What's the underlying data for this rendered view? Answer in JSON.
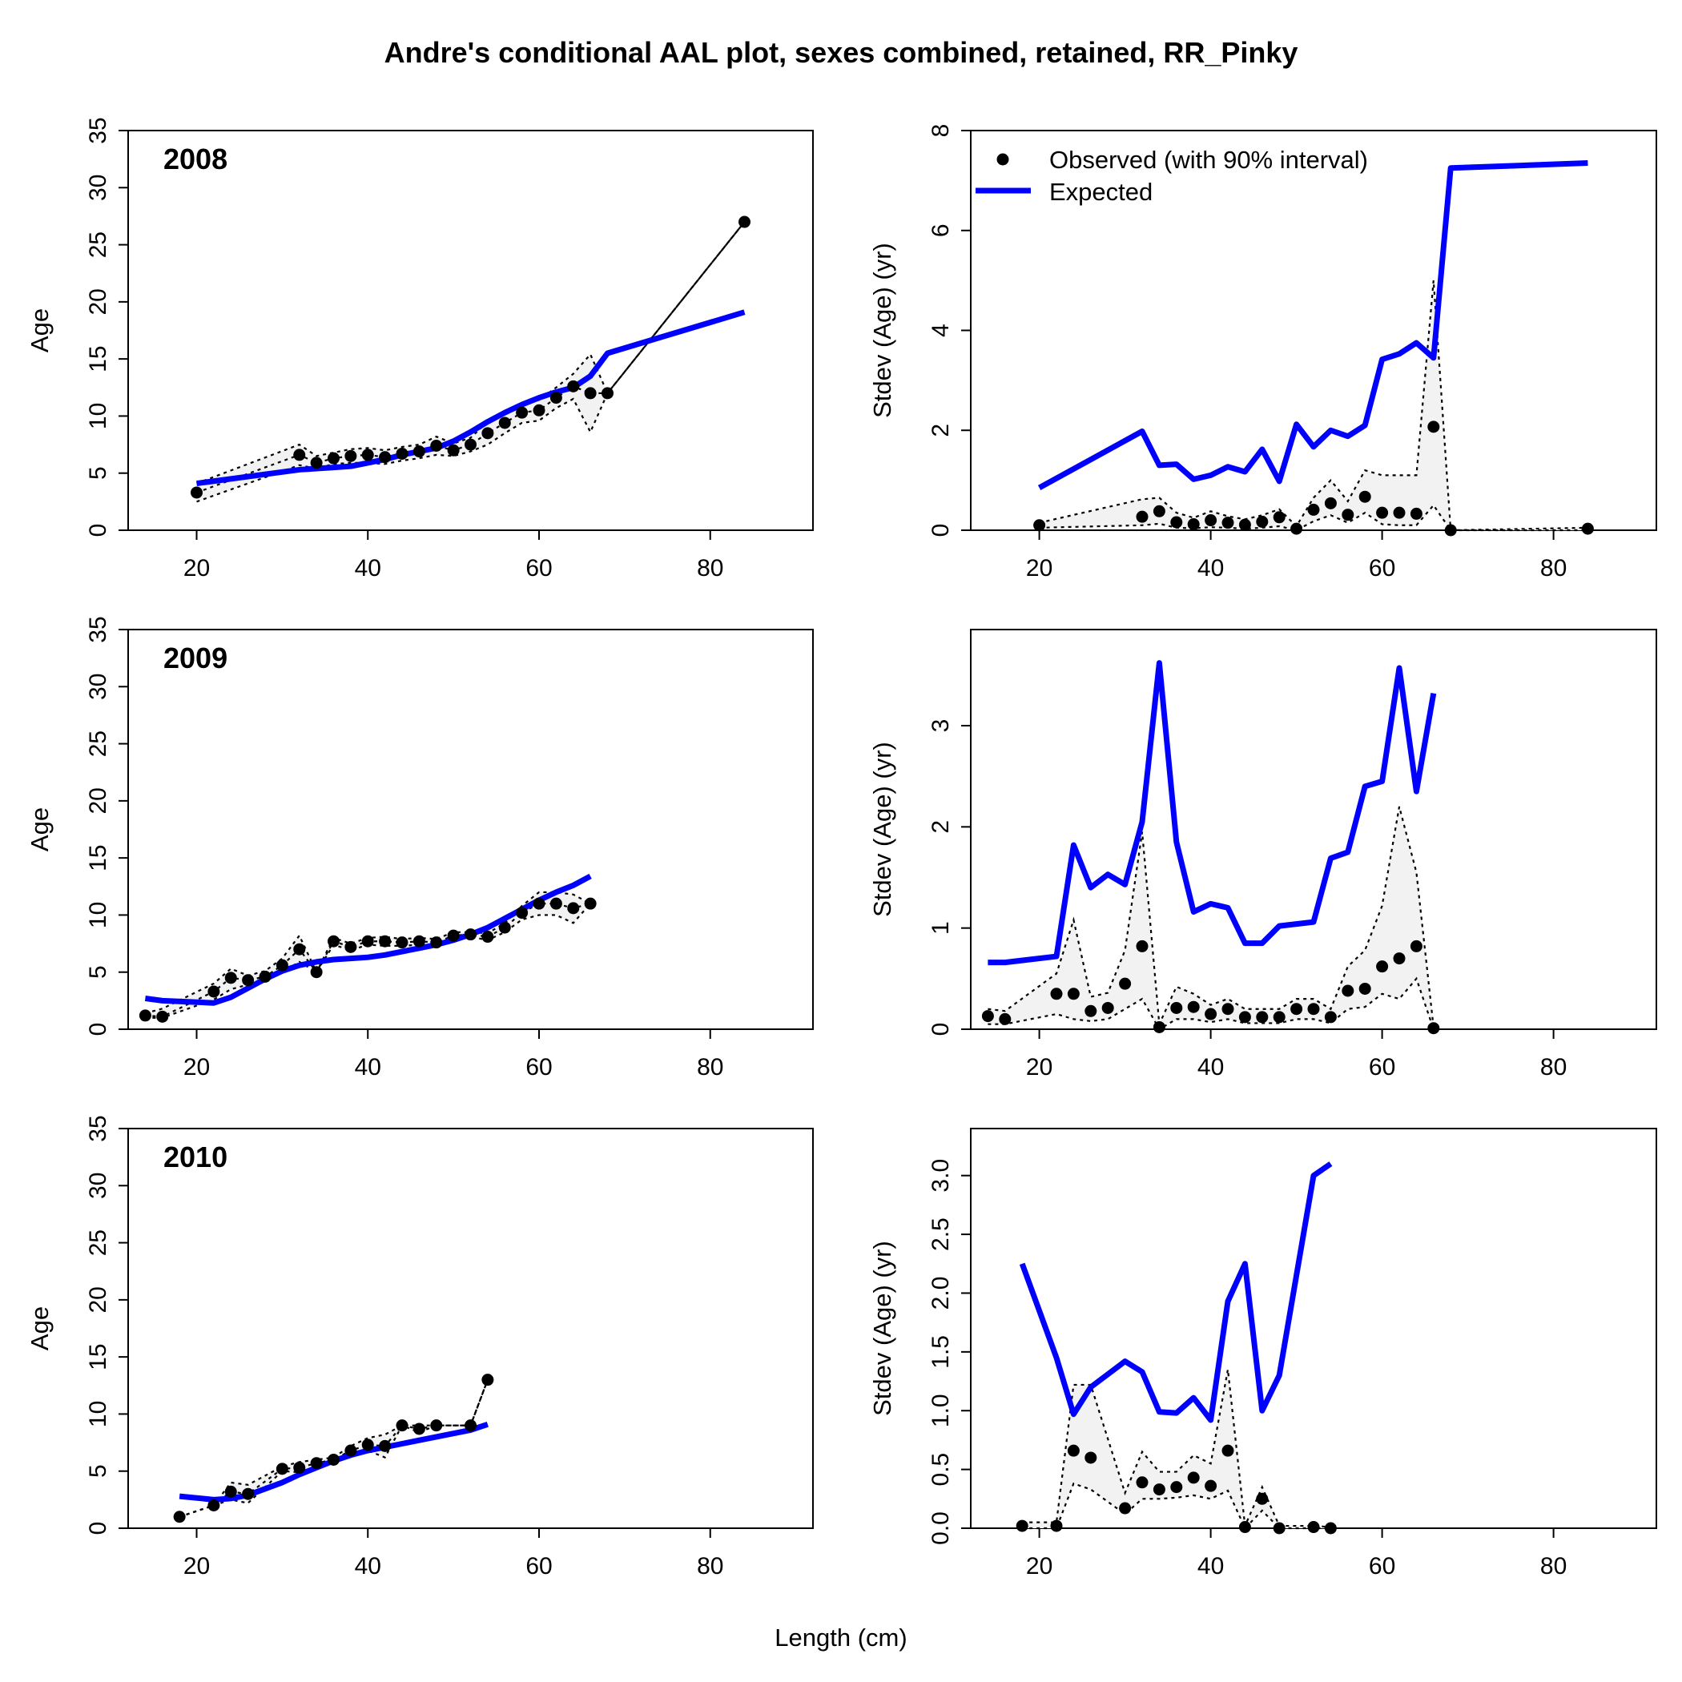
{
  "figure": {
    "title": "Andre's conditional AAL plot, sexes combined, retained, RR_Pinky",
    "xlabel": "Length (cm)",
    "ylabel_left": "Age",
    "ylabel_right": "Stdev (Age) (yr)",
    "legend": {
      "observed_label": "Observed (with 90% interval)",
      "expected_label": "Expected",
      "placement": "top-left",
      "panel": "2008 stdev"
    }
  },
  "colors": {
    "expected": "#0000ff",
    "observed": "#000000",
    "interval_fill": "#f2f2f2",
    "interval_line": "#000000"
  },
  "chart_data": [
    {
      "type": "line",
      "panel": "mean-age",
      "year": "2008",
      "xlim": [
        12,
        92
      ],
      "ylim": [
        0,
        35
      ],
      "xticks": [
        20,
        40,
        60,
        80
      ],
      "yticks": [
        0,
        5,
        10,
        15,
        20,
        25,
        30,
        35
      ],
      "observed": {
        "x": [
          20,
          32,
          34,
          36,
          38,
          40,
          42,
          44,
          46,
          48,
          50,
          52,
          54,
          56,
          58,
          60,
          62,
          64,
          66,
          68,
          84
        ],
        "y": [
          3.3,
          6.6,
          5.9,
          6.3,
          6.5,
          6.6,
          6.4,
          6.7,
          6.9,
          7.4,
          7.0,
          7.5,
          8.5,
          9.4,
          10.3,
          10.5,
          11.6,
          12.6,
          12.0,
          12.0,
          27.0
        ]
      },
      "interval": {
        "x": [
          20,
          32,
          34,
          36,
          38,
          40,
          42,
          44,
          46,
          48,
          50,
          52,
          54,
          56,
          58,
          60,
          62,
          64,
          66,
          68,
          84
        ],
        "lo": [
          2.5,
          5.7,
          5.4,
          5.8,
          5.9,
          5.9,
          5.8,
          6.1,
          6.3,
          6.6,
          6.5,
          6.9,
          7.5,
          8.5,
          9.4,
          9.6,
          10.7,
          11.5,
          8.6,
          12.0,
          27.0
        ],
        "hi": [
          4.1,
          7.5,
          6.5,
          6.8,
          7.1,
          7.2,
          7.0,
          7.3,
          7.5,
          8.2,
          7.6,
          8.1,
          9.5,
          10.3,
          11.2,
          11.4,
          12.5,
          13.7,
          15.4,
          12.0,
          27.0
        ]
      },
      "expected": {
        "x": [
          20,
          32,
          34,
          36,
          38,
          40,
          42,
          44,
          46,
          48,
          50,
          52,
          54,
          56,
          58,
          60,
          62,
          64,
          66,
          68,
          84
        ],
        "y": [
          4.1,
          5.3,
          5.4,
          5.5,
          5.6,
          5.9,
          6.2,
          6.6,
          6.9,
          7.2,
          7.8,
          8.6,
          9.5,
          10.3,
          11.0,
          11.6,
          12.1,
          12.5,
          13.5,
          15.5,
          19.1
        ]
      }
    },
    {
      "type": "line",
      "panel": "stdev-age",
      "year": "2008",
      "xlim": [
        12,
        92
      ],
      "ylim": [
        0,
        8
      ],
      "xticks": [
        20,
        40,
        60,
        80
      ],
      "yticks": [
        0,
        2,
        4,
        6,
        8
      ],
      "observed": {
        "x": [
          20,
          32,
          34,
          36,
          38,
          40,
          42,
          44,
          46,
          48,
          50,
          52,
          54,
          56,
          58,
          60,
          62,
          64,
          66,
          68,
          84
        ],
        "y": [
          0.1,
          0.27,
          0.38,
          0.16,
          0.12,
          0.2,
          0.15,
          0.11,
          0.17,
          0.26,
          0.03,
          0.41,
          0.54,
          0.31,
          0.67,
          0.35,
          0.35,
          0.33,
          2.07,
          0.0,
          0.03
        ]
      },
      "interval": {
        "x": [
          20,
          32,
          34,
          36,
          38,
          40,
          42,
          44,
          46,
          48,
          50,
          52,
          54,
          56,
          58,
          60,
          62,
          64,
          66,
          68,
          84
        ],
        "lo": [
          0.05,
          0.1,
          0.13,
          0.05,
          0.04,
          0.06,
          0.05,
          0.03,
          0.05,
          0.08,
          0.0,
          0.18,
          0.3,
          0.15,
          0.35,
          0.12,
          0.1,
          0.1,
          0.5,
          0.0,
          0.0
        ],
        "hi": [
          0.15,
          0.62,
          0.65,
          0.35,
          0.25,
          0.38,
          0.28,
          0.22,
          0.3,
          0.42,
          0.08,
          0.65,
          1.0,
          0.58,
          1.2,
          1.1,
          1.1,
          1.1,
          5.0,
          0.0,
          0.05
        ]
      },
      "expected": {
        "x": [
          20,
          32,
          34,
          36,
          38,
          40,
          42,
          44,
          46,
          48,
          50,
          52,
          54,
          56,
          58,
          60,
          62,
          64,
          66,
          68,
          84
        ],
        "y": [
          0.85,
          1.98,
          1.3,
          1.32,
          1.02,
          1.1,
          1.27,
          1.17,
          1.62,
          0.98,
          2.12,
          1.67,
          2.0,
          1.88,
          2.1,
          3.42,
          3.53,
          3.75,
          3.45,
          7.25,
          7.35
        ]
      }
    },
    {
      "type": "line",
      "panel": "mean-age",
      "year": "2009",
      "xlim": [
        12,
        92
      ],
      "ylim": [
        0,
        35
      ],
      "xticks": [
        20,
        40,
        60,
        80
      ],
      "yticks": [
        0,
        5,
        10,
        15,
        20,
        25,
        30,
        35
      ],
      "observed": {
        "x": [
          14,
          16,
          22,
          24,
          26,
          28,
          30,
          32,
          34,
          36,
          38,
          40,
          42,
          44,
          46,
          48,
          50,
          52,
          54,
          56,
          58,
          60,
          62,
          64,
          66
        ],
        "y": [
          1.2,
          1.1,
          3.3,
          4.5,
          4.3,
          4.6,
          5.6,
          7.0,
          5.0,
          7.7,
          7.2,
          7.7,
          7.7,
          7.6,
          7.7,
          7.6,
          8.2,
          8.3,
          8.1,
          8.9,
          10.2,
          11.0,
          11.0,
          10.6,
          11.0
        ]
      },
      "interval": {
        "x": [
          14,
          16,
          22,
          24,
          26,
          28,
          30,
          32,
          34,
          36,
          38,
          40,
          42,
          44,
          46,
          48,
          50,
          52,
          54,
          56,
          58,
          60,
          62,
          64,
          66
        ],
        "lo": [
          1.0,
          1.0,
          2.6,
          3.5,
          3.9,
          4.2,
          5.0,
          5.9,
          5.0,
          7.4,
          6.9,
          7.4,
          7.3,
          7.3,
          7.4,
          7.3,
          7.9,
          8.1,
          7.8,
          8.5,
          9.6,
          10.0,
          10.0,
          9.3,
          11.0
        ],
        "hi": [
          1.4,
          1.8,
          4.0,
          5.3,
          4.7,
          5.1,
          6.2,
          8.2,
          5.0,
          8.0,
          7.5,
          8.0,
          8.1,
          7.9,
          8.0,
          7.9,
          8.5,
          8.5,
          8.4,
          9.3,
          10.8,
          12.0,
          12.0,
          11.8,
          11.0
        ]
      },
      "expected": {
        "x": [
          14,
          16,
          22,
          24,
          26,
          28,
          30,
          32,
          34,
          36,
          38,
          40,
          42,
          44,
          46,
          48,
          50,
          52,
          54,
          56,
          58,
          60,
          62,
          64,
          66
        ],
        "y": [
          2.7,
          2.5,
          2.3,
          2.8,
          3.6,
          4.4,
          5.1,
          5.6,
          5.9,
          6.1,
          6.2,
          6.3,
          6.5,
          6.8,
          7.1,
          7.4,
          7.8,
          8.3,
          8.9,
          9.7,
          10.5,
          11.3,
          12.0,
          12.6,
          13.4
        ]
      }
    },
    {
      "type": "line",
      "panel": "stdev-age",
      "year": "2009",
      "xlim": [
        12,
        92
      ],
      "ylim": [
        0,
        3.95
      ],
      "xticks": [
        20,
        40,
        60,
        80
      ],
      "yticks": [
        0,
        1,
        2,
        3
      ],
      "observed": {
        "x": [
          14,
          16,
          22,
          24,
          26,
          28,
          30,
          32,
          34,
          36,
          38,
          40,
          42,
          44,
          46,
          48,
          50,
          52,
          54,
          56,
          58,
          60,
          62,
          64,
          66
        ],
        "y": [
          0.13,
          0.1,
          0.35,
          0.35,
          0.18,
          0.21,
          0.45,
          0.82,
          0.02,
          0.21,
          0.22,
          0.15,
          0.2,
          0.12,
          0.12,
          0.12,
          0.2,
          0.2,
          0.12,
          0.38,
          0.4,
          0.62,
          0.7,
          0.82,
          0.01
        ]
      },
      "interval": {
        "x": [
          14,
          16,
          22,
          24,
          26,
          28,
          30,
          32,
          34,
          36,
          38,
          40,
          42,
          44,
          46,
          48,
          50,
          52,
          54,
          56,
          58,
          60,
          62,
          64,
          66
        ],
        "lo": [
          0.05,
          0.05,
          0.15,
          0.1,
          0.08,
          0.1,
          0.2,
          0.3,
          0.0,
          0.1,
          0.1,
          0.07,
          0.1,
          0.06,
          0.06,
          0.06,
          0.1,
          0.1,
          0.06,
          0.2,
          0.22,
          0.35,
          0.3,
          0.5,
          0.0
        ],
        "hi": [
          0.2,
          0.18,
          0.55,
          1.08,
          0.32,
          0.36,
          0.78,
          1.95,
          0.05,
          0.42,
          0.35,
          0.24,
          0.3,
          0.2,
          0.2,
          0.2,
          0.3,
          0.3,
          0.2,
          0.62,
          0.78,
          1.22,
          2.2,
          1.55,
          0.02
        ]
      },
      "expected": {
        "x": [
          14,
          16,
          22,
          24,
          26,
          28,
          30,
          32,
          34,
          36,
          38,
          40,
          42,
          44,
          46,
          48,
          50,
          52,
          54,
          56,
          58,
          60,
          62,
          64,
          66
        ],
        "y": [
          0.66,
          0.66,
          0.72,
          1.82,
          1.4,
          1.53,
          1.43,
          2.05,
          3.62,
          1.85,
          1.16,
          1.24,
          1.2,
          0.85,
          0.85,
          1.02,
          1.04,
          1.06,
          1.69,
          1.75,
          2.4,
          2.45,
          3.57,
          2.35,
          3.32
        ]
      }
    },
    {
      "type": "line",
      "panel": "mean-age",
      "year": "2010",
      "xlim": [
        12,
        92
      ],
      "ylim": [
        0,
        35
      ],
      "xticks": [
        20,
        40,
        60,
        80
      ],
      "yticks": [
        0,
        5,
        10,
        15,
        20,
        25,
        30,
        35
      ],
      "observed": {
        "x": [
          18,
          22,
          24,
          26,
          30,
          32,
          34,
          36,
          38,
          40,
          42,
          44,
          46,
          48,
          52,
          54
        ],
        "y": [
          1.0,
          2.0,
          3.2,
          3.0,
          5.2,
          5.3,
          5.7,
          6.0,
          6.8,
          7.3,
          7.2,
          9.0,
          8.7,
          9.0,
          9.0,
          13.0
        ]
      },
      "interval": {
        "x": [
          18,
          22,
          24,
          26,
          30,
          32,
          34,
          36,
          38,
          40,
          42,
          44,
          46,
          48,
          52,
          54
        ],
        "lo": [
          1.0,
          2.0,
          2.5,
          2.2,
          5.0,
          4.9,
          5.4,
          5.8,
          6.4,
          6.8,
          6.2,
          9.0,
          8.4,
          9.0,
          9.0,
          13.0
        ],
        "hi": [
          1.0,
          2.0,
          4.0,
          3.8,
          5.4,
          5.8,
          6.0,
          6.2,
          7.2,
          7.9,
          8.2,
          9.0,
          9.0,
          9.0,
          9.0,
          13.0
        ]
      },
      "expected": {
        "x": [
          18,
          22,
          24,
          26,
          30,
          32,
          34,
          36,
          38,
          40,
          42,
          44,
          46,
          48,
          52,
          54
        ],
        "y": [
          2.8,
          2.5,
          2.6,
          2.9,
          4.0,
          4.7,
          5.3,
          5.9,
          6.4,
          6.8,
          7.1,
          7.4,
          7.7,
          8.0,
          8.6,
          9.1
        ]
      }
    },
    {
      "type": "line",
      "panel": "stdev-age",
      "year": "2010",
      "xlim": [
        12,
        92
      ],
      "ylim": [
        0,
        3.4
      ],
      "xticks": [
        20,
        40,
        60,
        80
      ],
      "yticks": [
        0.0,
        0.5,
        1.0,
        1.5,
        2.0,
        2.5,
        3.0
      ],
      "observed": {
        "x": [
          18,
          22,
          24,
          26,
          30,
          32,
          34,
          36,
          38,
          40,
          42,
          44,
          46,
          48,
          52,
          54
        ],
        "y": [
          0.02,
          0.02,
          0.66,
          0.6,
          0.17,
          0.39,
          0.33,
          0.35,
          0.43,
          0.36,
          0.66,
          0.01,
          0.25,
          0.0,
          0.01,
          0.0
        ]
      },
      "interval": {
        "x": [
          18,
          22,
          24,
          26,
          30,
          32,
          34,
          36,
          38,
          40,
          42,
          44,
          46,
          48,
          52,
          54
        ],
        "lo": [
          0.0,
          0.0,
          0.38,
          0.33,
          0.12,
          0.25,
          0.25,
          0.26,
          0.28,
          0.25,
          0.32,
          0.0,
          0.15,
          0.0,
          0.0,
          0.0
        ],
        "hi": [
          0.05,
          0.05,
          1.22,
          1.22,
          0.3,
          0.65,
          0.48,
          0.48,
          0.62,
          0.55,
          1.35,
          0.02,
          0.35,
          0.02,
          0.02,
          0.01
        ]
      },
      "expected": {
        "x": [
          18,
          22,
          24,
          26,
          30,
          32,
          34,
          36,
          38,
          40,
          42,
          44,
          46,
          48,
          52,
          54
        ],
        "y": [
          2.25,
          1.45,
          0.97,
          1.2,
          1.42,
          1.33,
          0.99,
          0.98,
          1.11,
          0.92,
          1.93,
          2.25,
          1.0,
          1.3,
          3.0,
          3.1
        ]
      }
    }
  ]
}
